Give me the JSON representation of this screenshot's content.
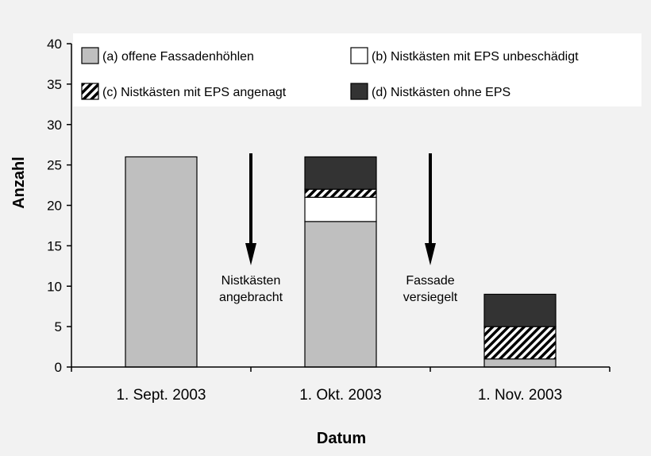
{
  "chart_data": {
    "type": "bar",
    "stacked": true,
    "categories": [
      "1. Sept. 2003",
      "1. Okt. 2003",
      "1. Nov. 2003"
    ],
    "series": [
      {
        "key": "a",
        "name": "(a) offene Fassadenhöhlen",
        "values": [
          26,
          18,
          1
        ],
        "color": "#bfbfbf",
        "pattern": "solid"
      },
      {
        "key": "b",
        "name": "(b) Nistkästen mit EPS unbeschädigt",
        "values": [
          0,
          3,
          0
        ],
        "color": "#ffffff",
        "pattern": "solid"
      },
      {
        "key": "c",
        "name": "(c) Nistkästen mit EPS angenagt",
        "values": [
          0,
          1,
          4
        ],
        "color": "#ffffff",
        "pattern": "diagonal-hatch"
      },
      {
        "key": "d",
        "name": "(d) Nistkästen ohne EPS",
        "values": [
          0,
          4,
          4
        ],
        "color": "#333333",
        "pattern": "solid"
      }
    ],
    "ylabel": "Anzahl",
    "xlabel": "Datum",
    "ylim": [
      0,
      40
    ],
    "yticks": [
      0,
      5,
      10,
      15,
      20,
      25,
      30,
      35,
      40
    ],
    "grid": false,
    "legend_position": "top",
    "annotations": [
      {
        "lines": [
          "Nistkästen",
          "angebracht"
        ],
        "between": [
          "1. Sept. 2003",
          "1. Okt. 2003"
        ],
        "arrow": "down"
      },
      {
        "lines": [
          "Fassade",
          "versiegelt"
        ],
        "between": [
          "1. Okt. 2003",
          "1. Nov. 2003"
        ],
        "arrow": "down"
      }
    ]
  },
  "colors": {
    "background": "#f2f2f2",
    "hatch": "#000000",
    "axis": "#000000"
  }
}
